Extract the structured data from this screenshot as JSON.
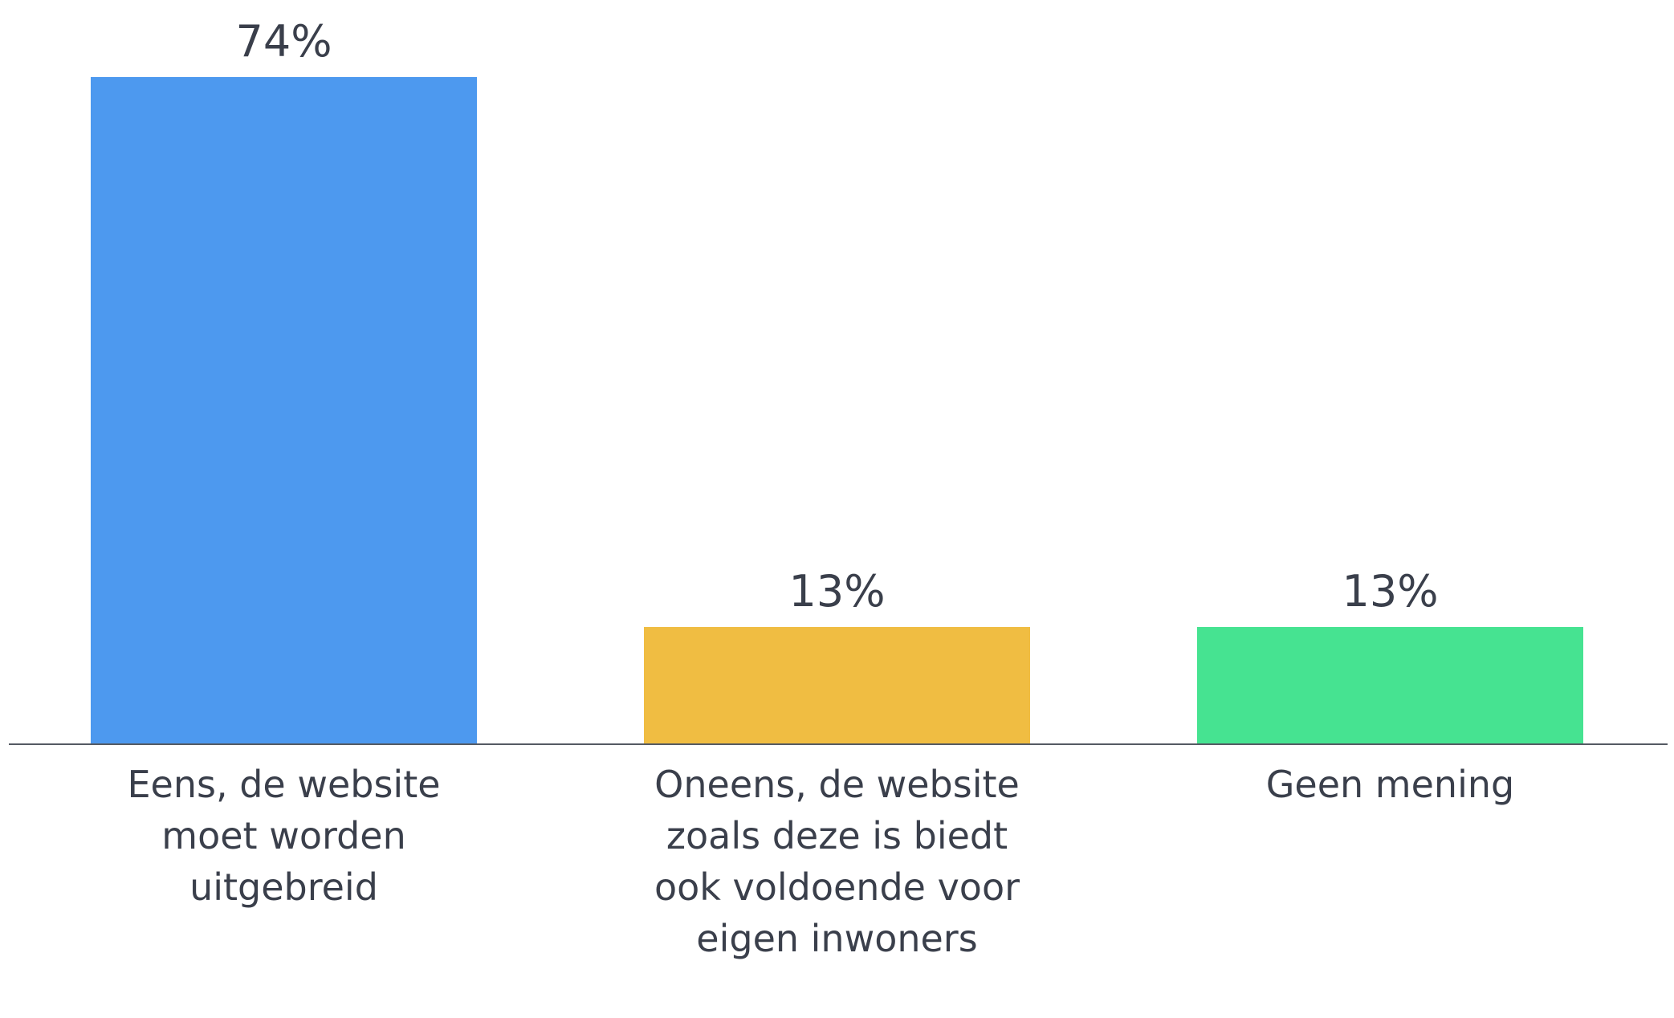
{
  "chart_data": {
    "type": "bar",
    "categories": [
      "Eens, de website moet worden uitgebreid",
      "Oneens, de website zoals deze is biedt ook voldoende voor eigen inwoners",
      "Geen mening"
    ],
    "values": [
      74,
      13,
      13
    ],
    "value_labels": [
      "74%",
      "13%",
      "13%"
    ],
    "colors": [
      "#4d99ef",
      "#f0bd42",
      "#46e391"
    ]
  }
}
